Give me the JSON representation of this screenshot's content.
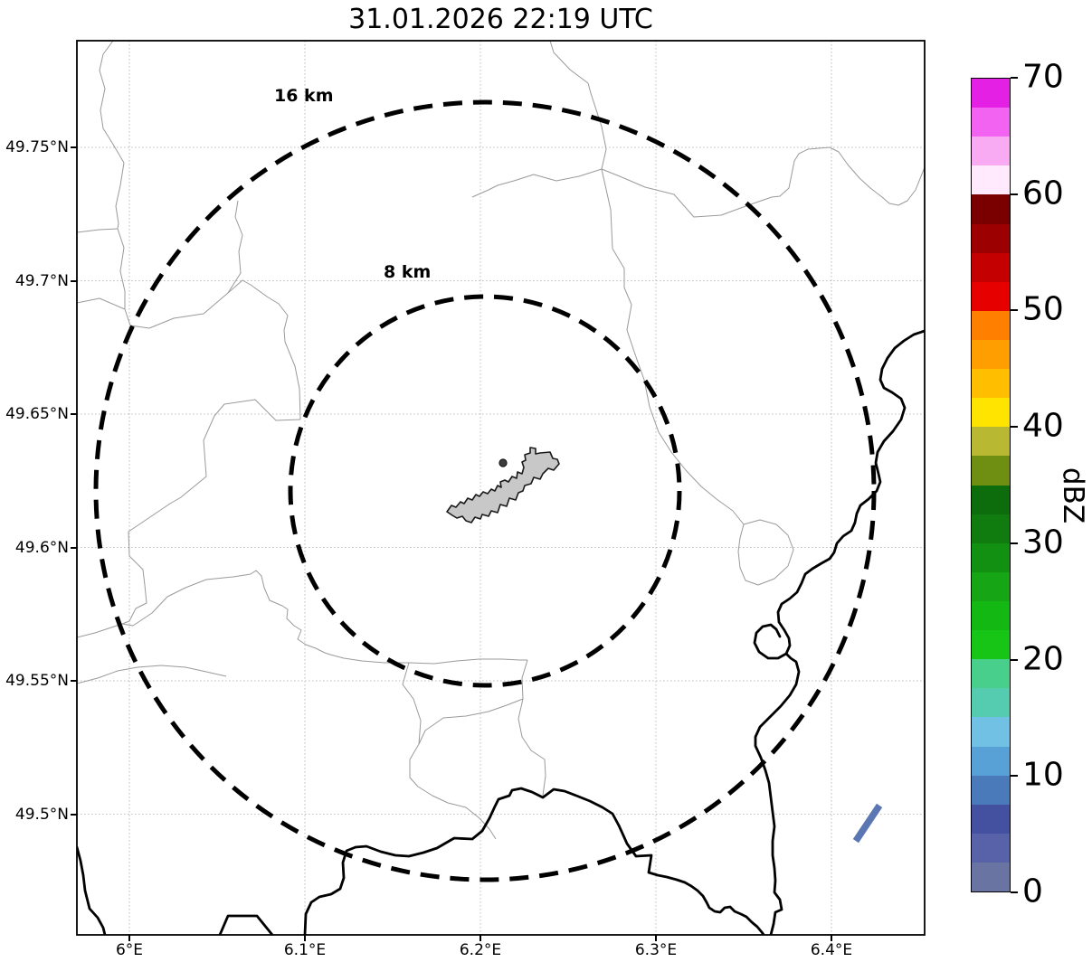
{
  "title": "31.01.2026 22:19 UTC",
  "map": {
    "x_axis": {
      "labels": [
        "6°E",
        "6.1°E",
        "6.2°E",
        "6.3°E",
        "6.4°E"
      ]
    },
    "y_axis": {
      "labels": [
        "49.75°N",
        "49.7°N",
        "49.65°N",
        "49.6°N",
        "49.55°N",
        "49.5°N"
      ]
    },
    "range_rings": {
      "outer_label": "16 km",
      "inner_label": "8 km"
    }
  },
  "colorbar": {
    "label": "dBZ",
    "ticks": [
      "0",
      "10",
      "20",
      "30",
      "40",
      "50",
      "60",
      "70"
    ],
    "min": 0,
    "max": 70,
    "step": 2.5,
    "colors": [
      "#6a74a2",
      "#5862a9",
      "#4450a0",
      "#4a7ab9",
      "#58a1d6",
      "#70c1e4",
      "#55ccb0",
      "#47cf8b",
      "#16c516",
      "#13b813",
      "#15a515",
      "#129012",
      "#107c10",
      "#0d6d0d",
      "#6e8f12",
      "#b8b832",
      "#ffe400",
      "#ffbe00",
      "#ff9e00",
      "#ff8000",
      "#e60000",
      "#c40000",
      "#9c0000",
      "#7a0000",
      "#feeafc",
      "#f8abf2",
      "#f263f2",
      "#e320e3"
    ]
  },
  "chart_data": {
    "type": "map",
    "title": "31.01.2026 22:19 UTC",
    "projection": "lat-lon (PlateCarree)",
    "lon_range": [
      5.969,
      6.452
    ],
    "lat_range": [
      49.455,
      49.79
    ],
    "lon_ticks": [
      6.0,
      6.1,
      6.2,
      6.3,
      6.4
    ],
    "lat_ticks": [
      49.75,
      49.7,
      49.65,
      49.6,
      49.55,
      49.5
    ],
    "radar_site": {
      "lon": 6.2,
      "lat": 49.62
    },
    "range_rings_km": [
      8,
      16
    ],
    "colorbar": {
      "label": "dBZ",
      "min": 0,
      "max": 70,
      "step_dbz": 2.5
    },
    "echoes": [
      {
        "approx_lon": 6.42,
        "approx_lat": 49.505,
        "approx_dbz": 5,
        "shape": "short diagonal streak",
        "color": "#5b77b3"
      }
    ],
    "overlays": [
      "country borders (thick black)",
      "municipal boundaries (thin gray)",
      "airport outline polygon (gray) at center",
      "dashed range rings 8 km and 16 km"
    ]
  }
}
